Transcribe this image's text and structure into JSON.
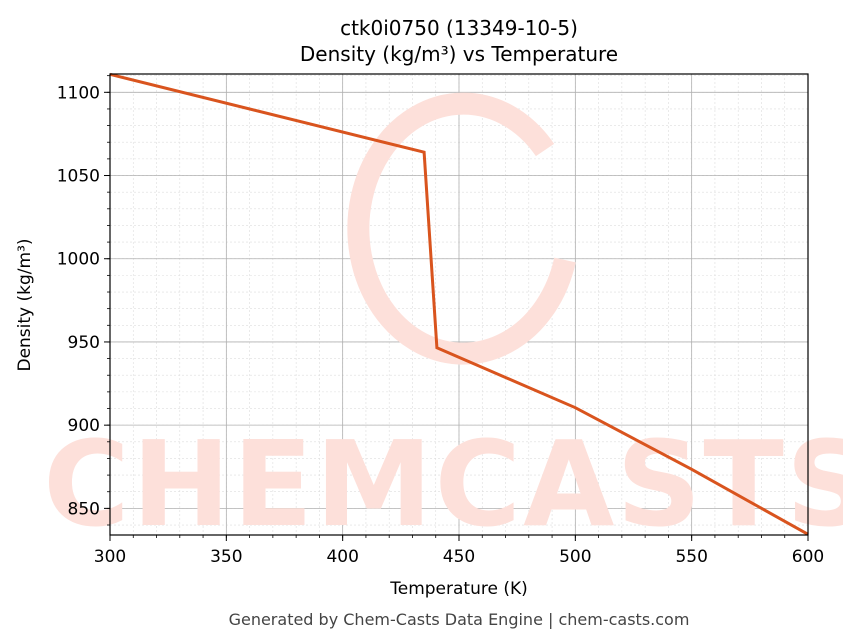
{
  "title_line1": "ctk0i0750 (13349-10-5)",
  "title_line2": "Density (kg/m³) vs Temperature",
  "footer": "Generated by Chem-Casts Data Engine | chem-casts.com",
  "watermark": "CHEMCASTS",
  "colors": {
    "line": "#d9541e",
    "watermark": "#fde0da",
    "grid_major": "#b0b0b0",
    "grid_minor": "#dddddd"
  },
  "chart_data": {
    "type": "line",
    "title": "ctk0i0750 (13349-10-5)\nDensity (kg/m³) vs Temperature",
    "xlabel": "Temperature (K)",
    "ylabel": "Density (kg/m³)",
    "xlim": [
      300,
      600
    ],
    "ylim": [
      834,
      1111
    ],
    "xticks": [
      300,
      350,
      400,
      450,
      500,
      550,
      600
    ],
    "yticks": [
      850,
      900,
      950,
      1000,
      1050,
      1100
    ],
    "grid": true,
    "legend": null,
    "series": [
      {
        "name": "Density",
        "x": [
          300,
          435,
          440.5,
          500,
          550,
          600
        ],
        "y": [
          1110.8,
          1064,
          946.5,
          910.5,
          873.5,
          834.4
        ]
      }
    ]
  }
}
